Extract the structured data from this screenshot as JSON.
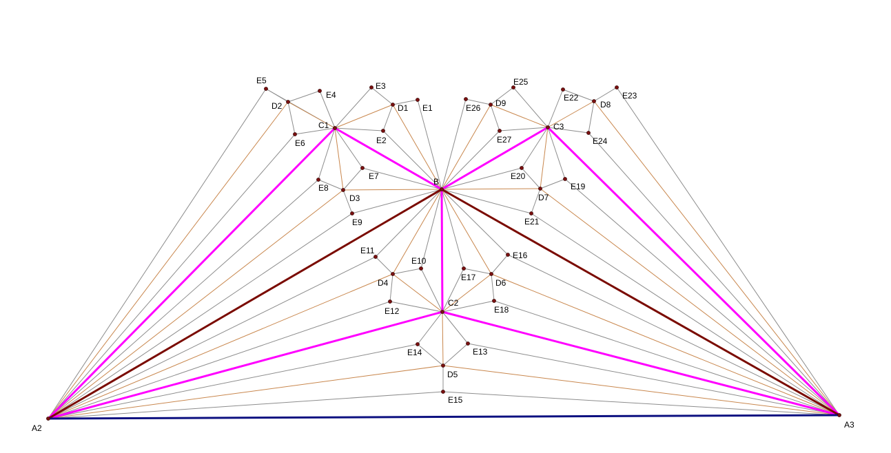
{
  "colors": {
    "gray_line": "#8c8c8c",
    "orange_line": "#c8864c",
    "magenta_line": "#ff00ff",
    "darkred_line": "#7a0a00",
    "navy_line": "#0c1080",
    "point_fill": "#7a1010"
  },
  "points": {
    "A2": "A2",
    "A3": "A3",
    "B": "B",
    "C1": "C1",
    "C2": "C2",
    "C3": "C3",
    "D1": "D1",
    "D2": "D2",
    "D3": "D3",
    "D4": "D4",
    "D5": "D5",
    "D6": "D6",
    "D7": "D7",
    "D8": "D8",
    "D9": "D9",
    "E1": "E1",
    "E2": "E2",
    "E3": "E3",
    "E4": "E4",
    "E5": "E5",
    "E6": "E6",
    "E7": "E7",
    "E8": "E8",
    "E9": "E9",
    "E10": "E10",
    "E11": "E11",
    "E12": "E12",
    "E13": "E13",
    "E14": "E14",
    "E15": "E15",
    "E16": "E16",
    "E17": "E17",
    "E18": "E18",
    "E19": "E19",
    "E20": "E20",
    "E21": "E21",
    "E22": "E22",
    "E23": "E23",
    "E24": "E24",
    "E25": "E25",
    "E26": "E26",
    "E27": "E27"
  }
}
